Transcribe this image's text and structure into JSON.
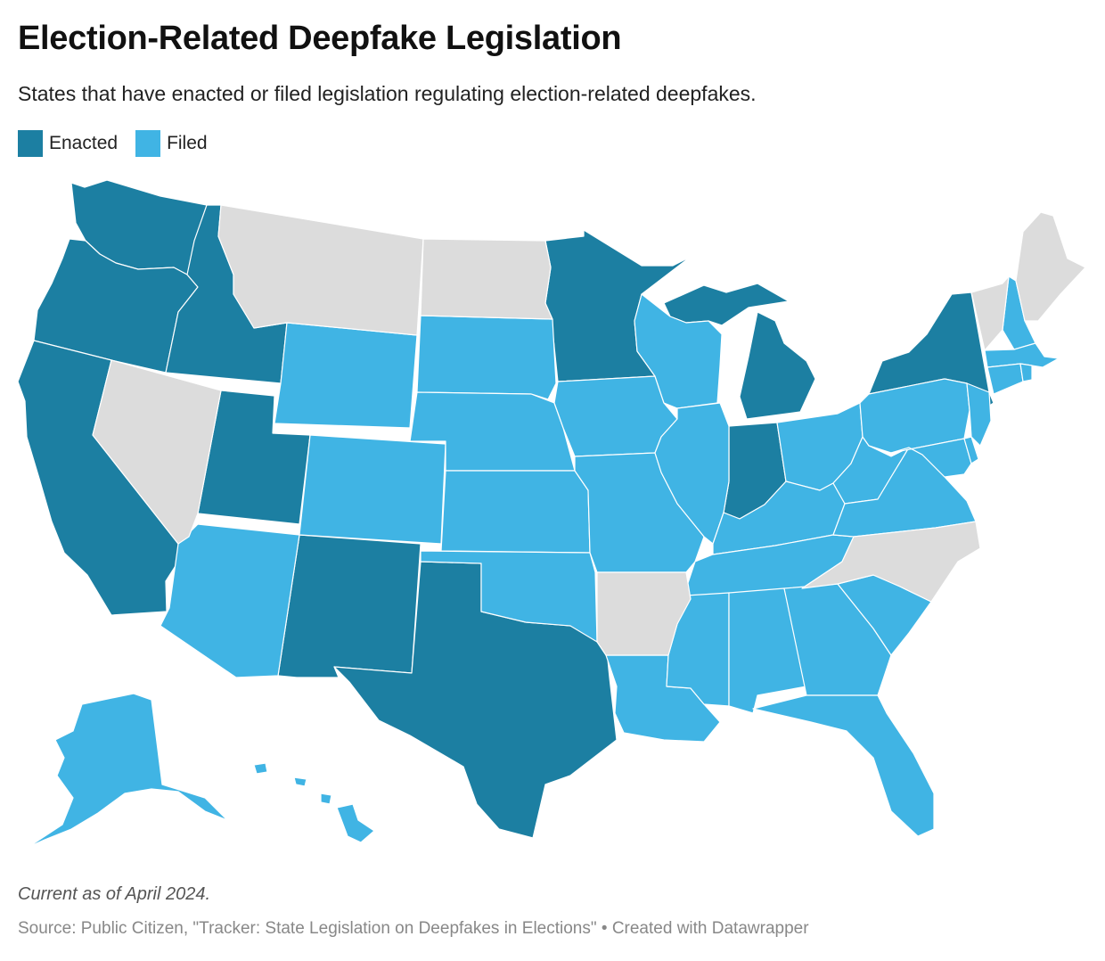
{
  "title": "Election-Related Deepfake Legislation",
  "subtitle": "States that have enacted or filed legislation regulating election-related deepfakes.",
  "legend": [
    {
      "label": "Enacted",
      "color": "#1c7fa2"
    },
    {
      "label": "Filed",
      "color": "#40b4e4"
    }
  ],
  "no_data_color": "#dcdcdc",
  "map": {
    "type": "choropleth",
    "region": "United States",
    "categories": {
      "enacted": [
        "WA",
        "OR",
        "CA",
        "ID",
        "UT",
        "NM",
        "TX",
        "MN",
        "MI",
        "IN",
        "NY"
      ],
      "filed": [
        "AK",
        "HI",
        "AZ",
        "WY",
        "CO",
        "SD",
        "NE",
        "KS",
        "OK",
        "IA",
        "MO",
        "WI",
        "IL",
        "OH",
        "KY",
        "TN",
        "LA",
        "MS",
        "AL",
        "GA",
        "FL",
        "SC",
        "VA",
        "WV",
        "PA",
        "NJ",
        "DE",
        "MD",
        "NH",
        "MA",
        "CT",
        "RI"
      ],
      "none": [
        "MT",
        "ND",
        "NV",
        "AR",
        "NC",
        "ME",
        "VT"
      ]
    }
  },
  "note": "Current as of April 2024.",
  "source": "Source: Public Citizen, \"Tracker: State Legislation on Deepfakes in Elections\" • Created with Datawrapper"
}
